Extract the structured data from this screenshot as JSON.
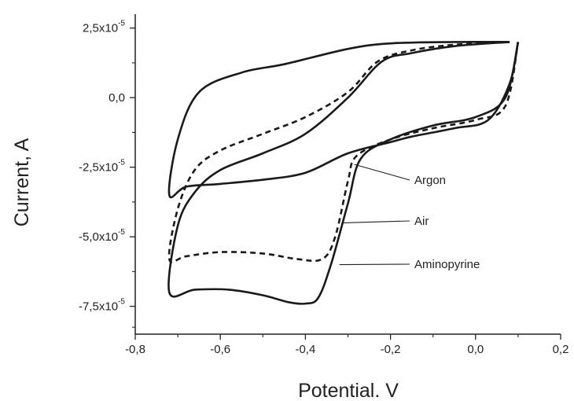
{
  "chart_data": {
    "type": "line",
    "title": "",
    "xlabel": "Potential. V",
    "ylabel": "Current, A",
    "xlim": [
      -0.8,
      0.2
    ],
    "ylim": [
      -8.5e-05,
      3e-05
    ],
    "grid": false,
    "legend": "none",
    "x_ticks": [
      {
        "value": -0.8,
        "label": "-0,8"
      },
      {
        "value": -0.6,
        "label": "-0,6"
      },
      {
        "value": -0.4,
        "label": "-0,4"
      },
      {
        "value": -0.2,
        "label": "-0,2"
      },
      {
        "value": 0.0,
        "label": "0,0"
      },
      {
        "value": 0.2,
        "label": "0,2"
      }
    ],
    "y_ticks": [
      {
        "value": 2.5e-05,
        "mantissa": "2,5x10",
        "exp": "-5"
      },
      {
        "value": 0.0,
        "mantissa": "0,0",
        "exp": ""
      },
      {
        "value": -2.5e-05,
        "mantissa": "-2,5x10",
        "exp": "-5"
      },
      {
        "value": -5e-05,
        "mantissa": "-5,0x10",
        "exp": "-5"
      },
      {
        "value": -7.5e-05,
        "mantissa": "-7,5x10",
        "exp": "-5"
      }
    ],
    "series": [
      {
        "name": "Argon",
        "style": "solid",
        "points": [
          [
            0.08,
            2e-05
          ],
          [
            -0.05,
            2e-05
          ],
          [
            -0.2,
            1.95e-05
          ],
          [
            -0.3,
            1.75e-05
          ],
          [
            -0.45,
            1.2e-05
          ],
          [
            -0.55,
            9e-06
          ],
          [
            -0.65,
            2e-06
          ],
          [
            -0.7,
            -1.5e-05
          ],
          [
            -0.72,
            -3.5e-05
          ],
          [
            -0.68,
            -3.2e-05
          ],
          [
            -0.6,
            -3.1e-05
          ],
          [
            -0.5,
            -2.95e-05
          ],
          [
            -0.4,
            -2.7e-05
          ],
          [
            -0.3,
            -2e-05
          ],
          [
            -0.2,
            -1.6e-05
          ],
          [
            -0.15,
            -1.4e-05
          ],
          [
            -0.05,
            -1.1e-05
          ],
          [
            0.03,
            -8e-06
          ],
          [
            0.08,
            5e-06
          ],
          [
            0.1,
            2e-05
          ]
        ]
      },
      {
        "name": "Air",
        "style": "dashed",
        "points": [
          [
            0.08,
            2e-05
          ],
          [
            -0.05,
            1.9e-05
          ],
          [
            -0.15,
            1.7e-05
          ],
          [
            -0.23,
            1.3e-05
          ],
          [
            -0.3,
            2e-06
          ],
          [
            -0.4,
            -7e-06
          ],
          [
            -0.5,
            -1.3e-05
          ],
          [
            -0.6,
            -1.9e-05
          ],
          [
            -0.66,
            -2.6e-05
          ],
          [
            -0.7,
            -4e-05
          ],
          [
            -0.72,
            -5.8e-05
          ],
          [
            -0.68,
            -5.7e-05
          ],
          [
            -0.6,
            -5.55e-05
          ],
          [
            -0.5,
            -5.6e-05
          ],
          [
            -0.42,
            -5.8e-05
          ],
          [
            -0.36,
            -5.8e-05
          ],
          [
            -0.33,
            -5e-05
          ],
          [
            -0.3,
            -3e-05
          ],
          [
            -0.28,
            -2.1e-05
          ],
          [
            -0.2,
            -1.5e-05
          ],
          [
            -0.1,
            -1.1e-05
          ],
          [
            0.0,
            -8e-06
          ],
          [
            0.07,
            -3e-06
          ],
          [
            0.1,
            2e-05
          ]
        ]
      },
      {
        "name": "Aminopyrine",
        "style": "solid",
        "points": [
          [
            0.08,
            2e-05
          ],
          [
            -0.05,
            1.85e-05
          ],
          [
            -0.15,
            1.6e-05
          ],
          [
            -0.22,
            1.3e-05
          ],
          [
            -0.3,
            0.0
          ],
          [
            -0.4,
            -1.3e-05
          ],
          [
            -0.5,
            -2e-05
          ],
          [
            -0.6,
            -2.6e-05
          ],
          [
            -0.66,
            -3.4e-05
          ],
          [
            -0.7,
            -4.6e-05
          ],
          [
            -0.72,
            -7e-05
          ],
          [
            -0.66,
            -6.9e-05
          ],
          [
            -0.58,
            -6.9e-05
          ],
          [
            -0.5,
            -7.1e-05
          ],
          [
            -0.44,
            -7.35e-05
          ],
          [
            -0.4,
            -7.4e-05
          ],
          [
            -0.37,
            -7.2e-05
          ],
          [
            -0.34,
            -6e-05
          ],
          [
            -0.3,
            -3.8e-05
          ],
          [
            -0.27,
            -2.2e-05
          ],
          [
            -0.2,
            -1.5e-05
          ],
          [
            -0.1,
            -1e-05
          ],
          [
            0.0,
            -7e-06
          ],
          [
            0.07,
            0.0
          ],
          [
            0.1,
            2e-05
          ]
        ]
      }
    ],
    "annotations": [
      {
        "text": "Argon",
        "point": [
          -0.285,
          -2.4e-05
        ]
      },
      {
        "text": "Air",
        "point": [
          -0.31,
          -4.5e-05
        ]
      },
      {
        "text": "Aminopyrine",
        "point": [
          -0.32,
          -6e-05
        ]
      }
    ]
  }
}
